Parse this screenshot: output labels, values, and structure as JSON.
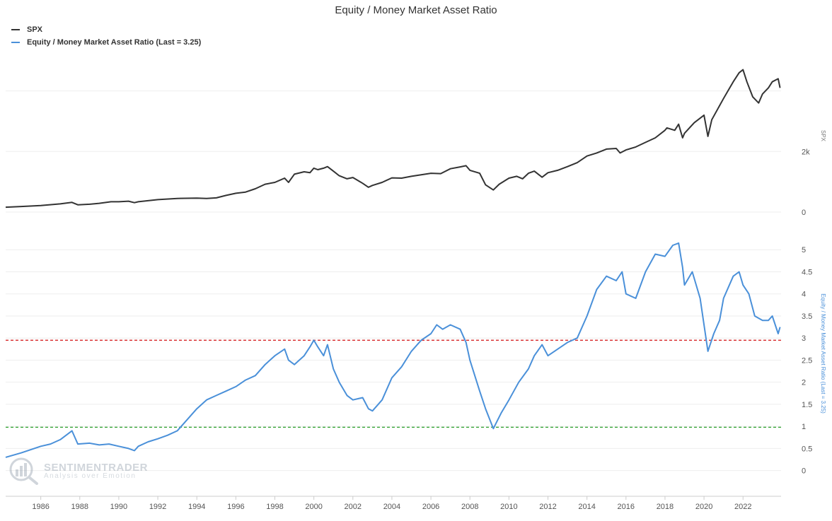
{
  "chart_data": {
    "type": "line",
    "title": "Equity / Money Market Asset Ratio",
    "legend_position": "top-left",
    "grid": "horizontal",
    "x_tick_labels": [
      "1986",
      "1988",
      "1990",
      "1992",
      "1994",
      "1996",
      "1998",
      "2000",
      "2002",
      "2004",
      "2006",
      "2008",
      "2010",
      "2012",
      "2014",
      "2016",
      "2018",
      "2020",
      "2022"
    ],
    "panels": [
      {
        "id": "spx",
        "ylabel": "SPX",
        "ylim": [
          0,
          4900
        ],
        "y_tick_labels": [
          {
            "value": 0,
            "label": "0"
          },
          {
            "value": 2000,
            "label": "2k"
          }
        ],
        "series": [
          {
            "name": "SPX",
            "color": "#333333",
            "x": [
              1984.2,
              1985,
              1986,
              1987,
              1987.6,
              1987.9,
              1988.5,
              1989,
              1989.6,
              1990,
              1990.5,
              1990.8,
              1991,
              1992,
              1993,
              1994,
              1994.5,
              1995,
              1995.5,
              1996,
              1996.5,
              1997,
              1997.5,
              1998,
              1998.5,
              1998.7,
              1999,
              1999.5,
              1999.8,
              2000,
              2000.2,
              2000.5,
              2000.7,
              2001,
              2001.3,
              2001.7,
              2002,
              2002.5,
              2002.8,
              2003,
              2003.5,
              2004,
              2004.5,
              2005,
              2006,
              2006.5,
              2007,
              2007.5,
              2007.8,
              2008,
              2008.5,
              2008.8,
              2009.2,
              2009.5,
              2010,
              2010.4,
              2010.7,
              2011,
              2011.3,
              2011.7,
              2012,
              2012.5,
              2013,
              2013.5,
              2014,
              2014.5,
              2015,
              2015.5,
              2015.7,
              2016,
              2016.5,
              2017,
              2017.5,
              2018,
              2018.1,
              2018.5,
              2018.7,
              2018.9,
              2019,
              2019.5,
              2020,
              2020.2,
              2020.4,
              2020.7,
              2021,
              2021.5,
              2021.8,
              2022,
              2022.2,
              2022.5,
              2022.8,
              2023,
              2023.3,
              2023.5,
              2023.8,
              2023.9
            ],
            "y": [
              160,
              185,
              215,
              270,
              320,
              240,
              260,
              290,
              340,
              340,
              360,
              310,
              340,
              410,
              450,
              460,
              450,
              470,
              550,
              620,
              660,
              770,
              920,
              980,
              1120,
              980,
              1250,
              1330,
              1300,
              1450,
              1400,
              1450,
              1500,
              1350,
              1200,
              1100,
              1140,
              950,
              820,
              880,
              980,
              1130,
              1120,
              1180,
              1280,
              1270,
              1430,
              1490,
              1530,
              1380,
              1280,
              900,
              730,
              920,
              1120,
              1180,
              1100,
              1280,
              1350,
              1150,
              1300,
              1380,
              1500,
              1630,
              1850,
              1950,
              2080,
              2100,
              1950,
              2050,
              2150,
              2300,
              2450,
              2700,
              2780,
              2700,
              2900,
              2450,
              2600,
              2950,
              3200,
              2500,
              3050,
              3400,
              3750,
              4300,
              4600,
              4700,
              4300,
              3800,
              3600,
              3900,
              4100,
              4300,
              4400,
              4100
            ]
          }
        ]
      },
      {
        "id": "ratio",
        "ylabel": "Equity / Money Market Asset Ratio (Last = 3.25)",
        "ylim": [
          -0.55,
          5.5
        ],
        "y_tick_labels": [
          {
            "value": 0,
            "label": "0"
          },
          {
            "value": 0.5,
            "label": "0.5"
          },
          {
            "value": 1,
            "label": "1"
          },
          {
            "value": 1.5,
            "label": "1.5"
          },
          {
            "value": 2,
            "label": "2"
          },
          {
            "value": 2.5,
            "label": "2.5"
          },
          {
            "value": 3,
            "label": "3"
          },
          {
            "value": 3.5,
            "label": "3.5"
          },
          {
            "value": 4,
            "label": "4"
          },
          {
            "value": 4.5,
            "label": "4.5"
          },
          {
            "value": 5,
            "label": "5"
          }
        ],
        "series": [
          {
            "name": "Equity / Money Market Asset Ratio (Last = 3.25)",
            "color": "#4a90d9",
            "x": [
              1984.2,
              1985,
              1986,
              1986.5,
              1987,
              1987.6,
              1987.9,
              1988.5,
              1989,
              1989.5,
              1990,
              1990.5,
              1990.8,
              1991,
              1991.5,
              1992,
              1992.5,
              1993,
              1993.5,
              1994,
              1994.5,
              1995,
              1995.5,
              1996,
              1996.5,
              1997,
              1997.5,
              1998,
              1998.5,
              1998.7,
              1999,
              1999.5,
              1999.8,
              2000,
              2000.2,
              2000.5,
              2000.7,
              2001,
              2001.3,
              2001.7,
              2002,
              2002.5,
              2002.8,
              2003,
              2003.5,
              2004,
              2004.5,
              2005,
              2005.5,
              2006,
              2006.3,
              2006.6,
              2007,
              2007.5,
              2007.8,
              2008,
              2008.5,
              2008.8,
              2009.2,
              2009.6,
              2010,
              2010.5,
              2011,
              2011.3,
              2011.7,
              2012,
              2012.5,
              2013,
              2013.5,
              2014,
              2014.5,
              2015,
              2015.5,
              2015.8,
              2016,
              2016.5,
              2017,
              2017.5,
              2018,
              2018.4,
              2018.7,
              2018.9,
              2019,
              2019.4,
              2019.8,
              2020,
              2020.2,
              2020.5,
              2020.8,
              2021,
              2021.5,
              2021.8,
              2022,
              2022.3,
              2022.6,
              2023,
              2023.3,
              2023.5,
              2023.8,
              2023.9
            ],
            "y": [
              0.3,
              0.4,
              0.55,
              0.6,
              0.7,
              0.9,
              0.6,
              0.62,
              0.58,
              0.6,
              0.55,
              0.5,
              0.45,
              0.55,
              0.65,
              0.72,
              0.8,
              0.9,
              1.15,
              1.4,
              1.6,
              1.7,
              1.8,
              1.9,
              2.05,
              2.15,
              2.4,
              2.6,
              2.75,
              2.5,
              2.4,
              2.6,
              2.8,
              2.95,
              2.8,
              2.6,
              2.85,
              2.3,
              2.0,
              1.7,
              1.6,
              1.65,
              1.4,
              1.35,
              1.6,
              2.1,
              2.35,
              2.7,
              2.95,
              3.1,
              3.3,
              3.2,
              3.3,
              3.2,
              2.9,
              2.5,
              1.8,
              1.4,
              0.95,
              1.3,
              1.6,
              2.0,
              2.3,
              2.6,
              2.85,
              2.6,
              2.75,
              2.9,
              3.0,
              3.5,
              4.1,
              4.4,
              4.3,
              4.5,
              4.0,
              3.9,
              4.5,
              4.9,
              4.85,
              5.1,
              5.15,
              4.6,
              4.2,
              4.5,
              3.9,
              3.3,
              2.7,
              3.1,
              3.4,
              3.9,
              4.4,
              4.5,
              4.2,
              4.0,
              3.5,
              3.4,
              3.4,
              3.5,
              3.1,
              3.25
            ]
          }
        ],
        "reference_lines": [
          {
            "value": 2.95,
            "color": "#d62728"
          },
          {
            "value": 0.98,
            "color": "#2ca02c"
          }
        ]
      }
    ]
  },
  "watermark": {
    "brand": "SENTIMENTRADER",
    "tagline": "Analysis over Emotion"
  }
}
